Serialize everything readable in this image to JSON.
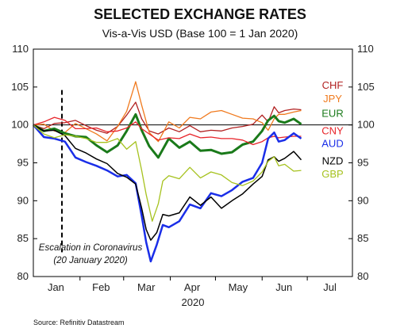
{
  "chart_data": {
    "type": "line",
    "title": "SELECTED EXCHANGE RATES",
    "subtitle": "Vis-a-Vis USD (Base 100 = 1 Jan 2020)",
    "xlabel": "2020",
    "ylabel": "",
    "source": "Source: Refinitiv Datastream",
    "ylim": [
      80,
      110
    ],
    "yticks": [
      "80",
      "85",
      "90",
      "95",
      "100",
      "105",
      "110"
    ],
    "x_start": "2020-01-01",
    "x_end": "2020-07-31",
    "month_labels": [
      "Jan",
      "Feb",
      "Mar",
      "Apr",
      "May",
      "Jun",
      "Jul"
    ],
    "base_line": 100,
    "annotation": {
      "date": "2020-01-20",
      "line1": "Escalation in Coronavirus",
      "line2": "(20 January 2020)"
    },
    "series": [
      {
        "name": "CHF",
        "color": "#b22222",
        "label_value": 105.3,
        "points": [
          [
            "2020-01-01",
            100
          ],
          [
            "2020-01-08",
            99.5
          ],
          [
            "2020-01-15",
            100.2
          ],
          [
            "2020-01-22",
            100.3
          ],
          [
            "2020-01-29",
            100.6
          ],
          [
            "2020-02-05",
            99.9
          ],
          [
            "2020-02-12",
            99.3
          ],
          [
            "2020-02-19",
            98.9
          ],
          [
            "2020-02-26",
            99.8
          ],
          [
            "2020-03-03",
            101.3
          ],
          [
            "2020-03-09",
            103.0
          ],
          [
            "2020-03-13",
            100.8
          ],
          [
            "2020-03-18",
            99.2
          ],
          [
            "2020-03-24",
            98.8
          ],
          [
            "2020-03-31",
            99.6
          ],
          [
            "2020-04-07",
            99.1
          ],
          [
            "2020-04-14",
            99.9
          ],
          [
            "2020-04-21",
            99.1
          ],
          [
            "2020-04-28",
            99.3
          ],
          [
            "2020-05-05",
            99.2
          ],
          [
            "2020-05-12",
            99.6
          ],
          [
            "2020-05-19",
            99.8
          ],
          [
            "2020-05-26",
            100.1
          ],
          [
            "2020-06-01",
            101.3
          ],
          [
            "2020-06-05",
            100.4
          ],
          [
            "2020-06-09",
            102.4
          ],
          [
            "2020-06-12",
            101.6
          ],
          [
            "2020-06-16",
            101.9
          ],
          [
            "2020-06-22",
            102.1
          ],
          [
            "2020-06-27",
            102.0
          ]
        ]
      },
      {
        "name": "JPY",
        "color": "#f07a1e",
        "label_value": 103.5,
        "points": [
          [
            "2020-01-01",
            100
          ],
          [
            "2020-01-08",
            100.1
          ],
          [
            "2020-01-15",
            99.2
          ],
          [
            "2020-01-22",
            99.0
          ],
          [
            "2020-01-29",
            100.2
          ],
          [
            "2020-02-05",
            99.5
          ],
          [
            "2020-02-12",
            98.8
          ],
          [
            "2020-02-19",
            97.9
          ],
          [
            "2020-02-26",
            99.8
          ],
          [
            "2020-03-03",
            101.8
          ],
          [
            "2020-03-09",
            105.7
          ],
          [
            "2020-03-13",
            102.6
          ],
          [
            "2020-03-18",
            99.0
          ],
          [
            "2020-03-24",
            97.8
          ],
          [
            "2020-03-31",
            100.4
          ],
          [
            "2020-04-07",
            99.6
          ],
          [
            "2020-04-14",
            101.0
          ],
          [
            "2020-04-21",
            100.8
          ],
          [
            "2020-04-28",
            101.7
          ],
          [
            "2020-05-05",
            101.9
          ],
          [
            "2020-05-12",
            101.4
          ],
          [
            "2020-05-19",
            100.9
          ],
          [
            "2020-05-26",
            100.8
          ],
          [
            "2020-06-01",
            100.3
          ],
          [
            "2020-06-05",
            99.3
          ],
          [
            "2020-06-09",
            100.8
          ],
          [
            "2020-06-12",
            101.4
          ],
          [
            "2020-06-16",
            101.4
          ],
          [
            "2020-06-22",
            101.7
          ],
          [
            "2020-06-27",
            101.9
          ]
        ]
      },
      {
        "name": "EUR",
        "color": "#1a7a1a",
        "label_value": 101.6,
        "points": [
          [
            "2020-01-01",
            100
          ],
          [
            "2020-01-08",
            99.2
          ],
          [
            "2020-01-15",
            99.5
          ],
          [
            "2020-01-22",
            98.9
          ],
          [
            "2020-01-29",
            98.5
          ],
          [
            "2020-02-05",
            98.4
          ],
          [
            "2020-02-12",
            97.3
          ],
          [
            "2020-02-19",
            96.4
          ],
          [
            "2020-02-26",
            97.3
          ],
          [
            "2020-03-03",
            99.2
          ],
          [
            "2020-03-09",
            101.4
          ],
          [
            "2020-03-13",
            99.3
          ],
          [
            "2020-03-18",
            97.2
          ],
          [
            "2020-03-24",
            95.7
          ],
          [
            "2020-03-31",
            98.2
          ],
          [
            "2020-04-07",
            97.0
          ],
          [
            "2020-04-14",
            97.8
          ],
          [
            "2020-04-21",
            96.6
          ],
          [
            "2020-04-28",
            96.7
          ],
          [
            "2020-05-05",
            96.2
          ],
          [
            "2020-05-12",
            96.4
          ],
          [
            "2020-05-19",
            97.4
          ],
          [
            "2020-05-26",
            97.8
          ],
          [
            "2020-06-01",
            99.2
          ],
          [
            "2020-06-05",
            100.6
          ],
          [
            "2020-06-09",
            101.2
          ],
          [
            "2020-06-12",
            100.5
          ],
          [
            "2020-06-16",
            100.3
          ],
          [
            "2020-06-22",
            100.8
          ],
          [
            "2020-06-27",
            100.1
          ]
        ]
      },
      {
        "name": "CNY",
        "color": "#e8242a",
        "label_value": 99.3,
        "points": [
          [
            "2020-01-01",
            100
          ],
          [
            "2020-01-08",
            100.4
          ],
          [
            "2020-01-15",
            101.0
          ],
          [
            "2020-01-22",
            100.6
          ],
          [
            "2020-01-29",
            99.5
          ],
          [
            "2020-02-05",
            99.5
          ],
          [
            "2020-02-12",
            99.6
          ],
          [
            "2020-02-19",
            99.1
          ],
          [
            "2020-02-26",
            99.2
          ],
          [
            "2020-03-03",
            99.6
          ],
          [
            "2020-03-09",
            100.4
          ],
          [
            "2020-03-13",
            99.5
          ],
          [
            "2020-03-18",
            98.8
          ],
          [
            "2020-03-24",
            98.0
          ],
          [
            "2020-03-31",
            98.3
          ],
          [
            "2020-04-07",
            98.2
          ],
          [
            "2020-04-14",
            98.8
          ],
          [
            "2020-04-21",
            98.3
          ],
          [
            "2020-04-28",
            98.4
          ],
          [
            "2020-05-05",
            98.2
          ],
          [
            "2020-05-12",
            98.2
          ],
          [
            "2020-05-19",
            98.0
          ],
          [
            "2020-05-26",
            97.4
          ],
          [
            "2020-06-01",
            97.8
          ],
          [
            "2020-06-05",
            98.3
          ],
          [
            "2020-06-09",
            98.5
          ],
          [
            "2020-06-12",
            98.3
          ],
          [
            "2020-06-16",
            98.4
          ],
          [
            "2020-06-22",
            98.5
          ],
          [
            "2020-06-27",
            98.5
          ]
        ]
      },
      {
        "name": "AUD",
        "color": "#1a2ee8",
        "label_value": 97.6,
        "points": [
          [
            "2020-01-01",
            100
          ],
          [
            "2020-01-08",
            98.4
          ],
          [
            "2020-01-15",
            98.2
          ],
          [
            "2020-01-22",
            97.8
          ],
          [
            "2020-01-29",
            95.7
          ],
          [
            "2020-02-05",
            95.1
          ],
          [
            "2020-02-12",
            94.6
          ],
          [
            "2020-02-19",
            94.0
          ],
          [
            "2020-02-26",
            93.2
          ],
          [
            "2020-03-03",
            93.4
          ],
          [
            "2020-03-09",
            92.3
          ],
          [
            "2020-03-13",
            88.0
          ],
          [
            "2020-03-16",
            84.5
          ],
          [
            "2020-03-19",
            82.0
          ],
          [
            "2020-03-23",
            84.2
          ],
          [
            "2020-03-27",
            86.8
          ],
          [
            "2020-03-31",
            86.5
          ],
          [
            "2020-04-07",
            87.3
          ],
          [
            "2020-04-14",
            89.5
          ],
          [
            "2020-04-21",
            89.0
          ],
          [
            "2020-04-28",
            91.0
          ],
          [
            "2020-05-05",
            90.6
          ],
          [
            "2020-05-12",
            91.4
          ],
          [
            "2020-05-19",
            92.5
          ],
          [
            "2020-05-26",
            93.0
          ],
          [
            "2020-06-01",
            95.0
          ],
          [
            "2020-06-05",
            98.2
          ],
          [
            "2020-06-09",
            99.0
          ],
          [
            "2020-06-12",
            97.8
          ],
          [
            "2020-06-16",
            98.0
          ],
          [
            "2020-06-22",
            98.9
          ],
          [
            "2020-06-27",
            98.2
          ]
        ]
      },
      {
        "name": "NZD",
        "color": "#000000",
        "label_value": 95.3,
        "points": [
          [
            "2020-01-01",
            100
          ],
          [
            "2020-01-08",
            99.2
          ],
          [
            "2020-01-15",
            99.3
          ],
          [
            "2020-01-22",
            98.6
          ],
          [
            "2020-01-29",
            96.9
          ],
          [
            "2020-02-05",
            96.3
          ],
          [
            "2020-02-12",
            95.5
          ],
          [
            "2020-02-19",
            94.9
          ],
          [
            "2020-02-26",
            93.6
          ],
          [
            "2020-03-03",
            93.1
          ],
          [
            "2020-03-09",
            92.2
          ],
          [
            "2020-03-13",
            89.0
          ],
          [
            "2020-03-16",
            86.2
          ],
          [
            "2020-03-19",
            84.8
          ],
          [
            "2020-03-23",
            85.8
          ],
          [
            "2020-03-27",
            88.2
          ],
          [
            "2020-03-31",
            88.0
          ],
          [
            "2020-04-07",
            88.4
          ],
          [
            "2020-04-14",
            90.5
          ],
          [
            "2020-04-21",
            89.4
          ],
          [
            "2020-04-28",
            90.5
          ],
          [
            "2020-05-05",
            89.0
          ],
          [
            "2020-05-12",
            90.0
          ],
          [
            "2020-05-19",
            90.9
          ],
          [
            "2020-05-26",
            92.2
          ],
          [
            "2020-06-01",
            93.2
          ],
          [
            "2020-06-05",
            95.4
          ],
          [
            "2020-06-09",
            95.8
          ],
          [
            "2020-06-12",
            95.2
          ],
          [
            "2020-06-16",
            95.6
          ],
          [
            "2020-06-22",
            96.5
          ],
          [
            "2020-06-27",
            95.4
          ]
        ]
      },
      {
        "name": "GBP",
        "color": "#a6c21e",
        "label_value": 93.6,
        "points": [
          [
            "2020-01-01",
            100
          ],
          [
            "2020-01-08",
            98.8
          ],
          [
            "2020-01-15",
            98.3
          ],
          [
            "2020-01-22",
            98.7
          ],
          [
            "2020-01-29",
            98.5
          ],
          [
            "2020-02-05",
            98.2
          ],
          [
            "2020-02-12",
            97.7
          ],
          [
            "2020-02-19",
            97.7
          ],
          [
            "2020-02-26",
            98.2
          ],
          [
            "2020-03-03",
            96.8
          ],
          [
            "2020-03-09",
            97.8
          ],
          [
            "2020-03-13",
            94.0
          ],
          [
            "2020-03-16",
            90.8
          ],
          [
            "2020-03-20",
            87.3
          ],
          [
            "2020-03-24",
            89.6
          ],
          [
            "2020-03-27",
            92.6
          ],
          [
            "2020-03-31",
            93.3
          ],
          [
            "2020-04-07",
            92.9
          ],
          [
            "2020-04-14",
            94.4
          ],
          [
            "2020-04-21",
            93.0
          ],
          [
            "2020-04-28",
            93.8
          ],
          [
            "2020-05-05",
            93.4
          ],
          [
            "2020-05-12",
            92.4
          ],
          [
            "2020-05-19",
            92.0
          ],
          [
            "2020-05-26",
            92.6
          ],
          [
            "2020-06-01",
            93.8
          ],
          [
            "2020-06-05",
            95.2
          ],
          [
            "2020-06-09",
            95.8
          ],
          [
            "2020-06-12",
            94.6
          ],
          [
            "2020-06-16",
            94.8
          ],
          [
            "2020-06-22",
            93.9
          ],
          [
            "2020-06-27",
            94.0
          ]
        ]
      }
    ]
  }
}
